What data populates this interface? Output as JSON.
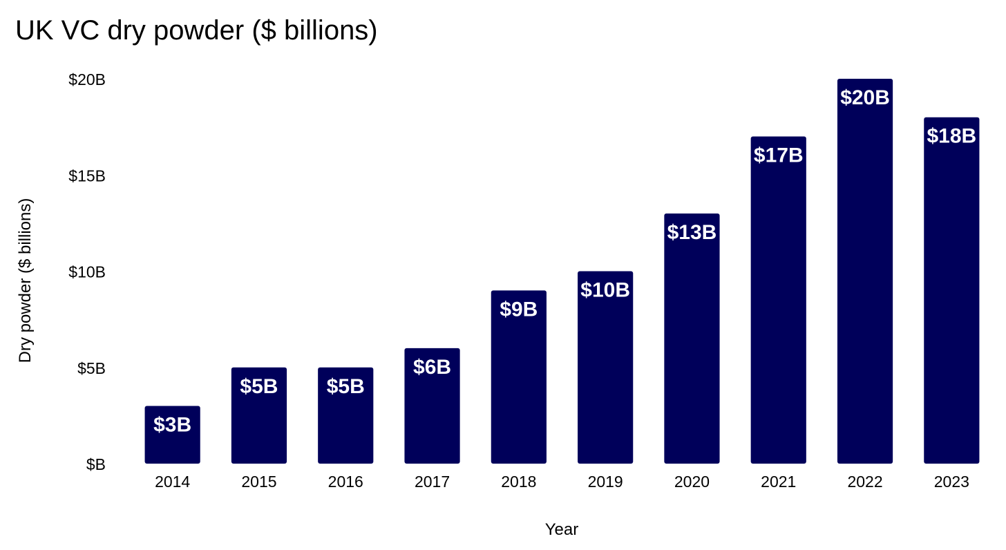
{
  "chart_data": {
    "type": "bar",
    "title": "UK VC dry powder ($ billions)",
    "xlabel": "Year",
    "ylabel": "Dry powder ($ billions)",
    "categories": [
      "2014",
      "2015",
      "2016",
      "2017",
      "2018",
      "2019",
      "2020",
      "2021",
      "2022",
      "2023"
    ],
    "values": [
      3,
      5,
      5,
      6,
      9,
      10,
      13,
      17,
      20,
      18
    ],
    "data_labels": [
      "$3B",
      "$5B",
      "$5B",
      "$6B",
      "$9B",
      "$10B",
      "$13B",
      "$17B",
      "$20B",
      "$18B"
    ],
    "yticks": [
      0,
      5,
      10,
      15,
      20
    ],
    "ytick_labels": [
      "$B",
      "$5B",
      "$10B",
      "$15B",
      "$20B"
    ],
    "ylim": [
      0,
      20
    ],
    "grid": false,
    "legend": "none",
    "bar_color": "#00005a",
    "data_label_color": "#ffffff"
  }
}
